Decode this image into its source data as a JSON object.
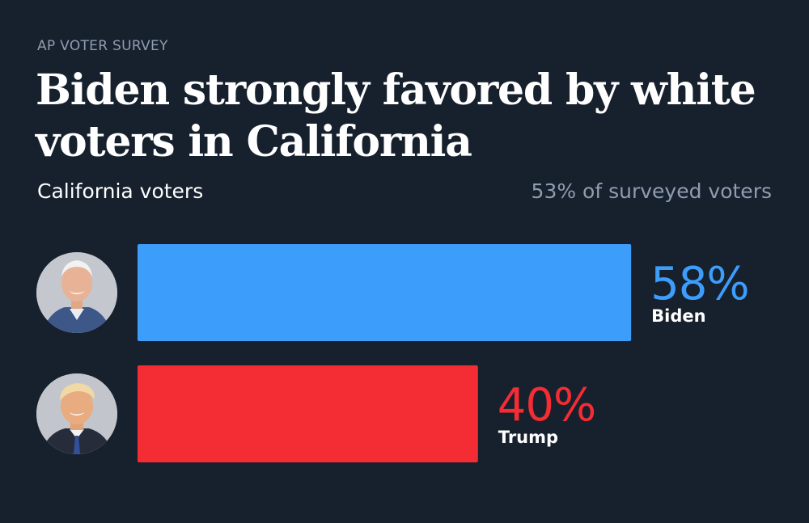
{
  "kicker": "AP VOTER SURVEY",
  "title": "Biden strongly favored by white voters in California",
  "group_label": "California voters",
  "share_label": "53% of surveyed voters",
  "chart_data": {
    "type": "bar",
    "orientation": "horizontal",
    "categories": [
      "Biden",
      "Trump"
    ],
    "values": [
      58,
      40
    ],
    "value_labels": [
      "58%",
      "40%"
    ],
    "colors": [
      "#3c9dfa",
      "#f42c33"
    ],
    "xlim": [
      0,
      100
    ],
    "grid": false,
    "icons": [
      "biden-portrait-icon",
      "trump-portrait-icon"
    ]
  }
}
